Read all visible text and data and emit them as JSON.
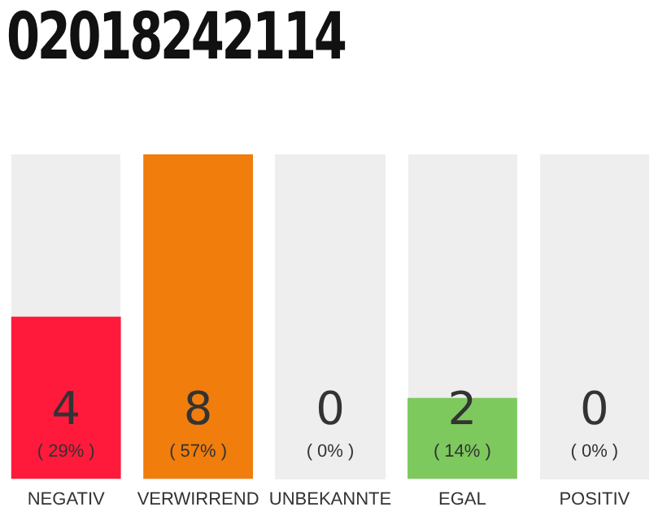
{
  "chart_data": {
    "type": "bar",
    "title": "02018242114",
    "categories": [
      "NEGATIV",
      "VERWIRREND",
      "UNBEKANNTE",
      "EGAL",
      "POSITIV"
    ],
    "values": [
      4,
      8,
      0,
      2,
      0
    ],
    "colors": [
      "#ff1a3c",
      "#f07d0c",
      "#cccccc",
      "#7dc95e",
      "#cccccc"
    ],
    "value_labels": [
      "4\n( 29% )",
      "8\n( 57% )",
      "0\n( 0% )",
      "2\n( 14% )",
      "0\n( 0% )"
    ],
    "ylim": [
      0,
      8
    ],
    "grid": false,
    "legend": false,
    "tick_labels": "x"
  }
}
